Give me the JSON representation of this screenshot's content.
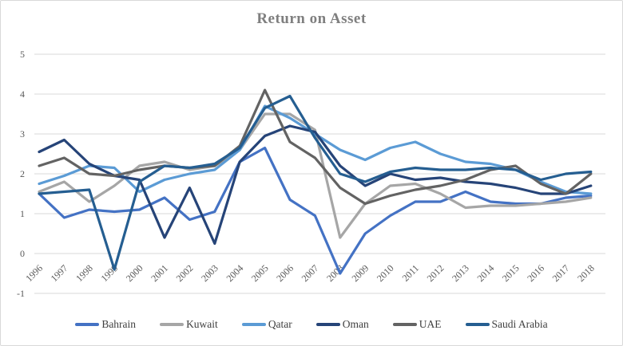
{
  "window": {
    "background": "#FFFFFF",
    "border_color": "#D9D9D9"
  },
  "chart_data": {
    "type": "line",
    "title": "Return on Asset",
    "xlabel": "",
    "ylabel": "",
    "ylim": [
      -1,
      5
    ],
    "y_ticks": [
      "5",
      "4",
      "3",
      "2",
      "1",
      "0",
      "-1"
    ],
    "grid": true,
    "legend_position": "bottom",
    "x_labels": [
      "1996",
      "1997",
      "1998",
      "1999",
      "2000",
      "2001",
      "2002",
      "2003",
      "2004",
      "2005",
      "2006",
      "2007",
      "2008",
      "2009",
      "2010",
      "2011",
      "2012",
      "2013",
      "2014",
      "2015",
      "2016",
      "2017",
      "2018"
    ],
    "series": [
      {
        "name": "Bahrain",
        "color": "#4472C4",
        "values": [
          1.5,
          0.9,
          1.1,
          1.05,
          1.1,
          1.4,
          0.85,
          1.05,
          2.3,
          2.65,
          1.35,
          0.95,
          -0.5,
          0.5,
          0.95,
          1.3,
          1.3,
          1.55,
          1.3,
          1.25,
          1.25,
          1.4,
          1.45
        ]
      },
      {
        "name": "Kuwait",
        "color": "#A6A6A6",
        "values": [
          1.55,
          1.8,
          1.3,
          1.7,
          2.2,
          2.3,
          2.1,
          2.2,
          2.6,
          3.5,
          3.5,
          3.1,
          0.4,
          1.25,
          1.7,
          1.75,
          1.5,
          1.15,
          1.2,
          1.2,
          1.25,
          1.3,
          1.4
        ]
      },
      {
        "name": "Qatar",
        "color": "#5B9BD5",
        "values": [
          1.75,
          1.95,
          2.2,
          2.15,
          1.55,
          1.85,
          2.0,
          2.1,
          2.6,
          3.7,
          3.4,
          3.0,
          2.6,
          2.35,
          2.65,
          2.8,
          2.5,
          2.3,
          2.25,
          2.1,
          1.8,
          1.55,
          1.5
        ]
      },
      {
        "name": "Oman",
        "color": "#264478",
        "values": [
          2.55,
          2.85,
          2.25,
          1.95,
          1.85,
          0.4,
          1.65,
          0.25,
          2.3,
          2.95,
          3.2,
          3.05,
          2.2,
          1.7,
          2.0,
          1.85,
          1.9,
          1.8,
          1.75,
          1.65,
          1.5,
          1.5,
          1.7
        ]
      },
      {
        "name": "UAE",
        "color": "#636363",
        "values": [
          2.2,
          2.4,
          2.0,
          1.95,
          2.1,
          2.2,
          2.15,
          2.2,
          2.7,
          4.1,
          2.8,
          2.4,
          1.65,
          1.25,
          1.45,
          1.6,
          1.7,
          1.85,
          2.1,
          2.2,
          1.75,
          1.5,
          2.0
        ]
      },
      {
        "name": "Saudi Arabia",
        "color": "#255E91",
        "values": [
          1.5,
          1.55,
          1.6,
          -0.4,
          1.8,
          2.2,
          2.15,
          2.25,
          2.65,
          3.65,
          3.95,
          2.9,
          2.0,
          1.8,
          2.05,
          2.15,
          2.1,
          2.1,
          2.15,
          2.1,
          1.85,
          2.0,
          2.05
        ]
      }
    ],
    "style": {
      "grid_color": "#D9D9D9",
      "tick_label_color": "#595959",
      "title_color": "#7F7F7F",
      "legend_text_color": "#404040"
    }
  }
}
